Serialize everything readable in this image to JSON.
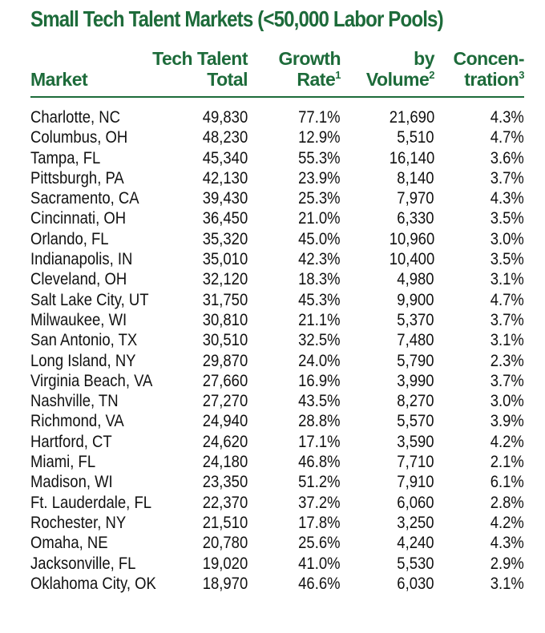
{
  "chart_data": {
    "type": "table",
    "title": "Small Tech Talent Markets (<50,000 Labor Pools)",
    "columns": [
      {
        "key": "market",
        "line1": "",
        "line2": "Market",
        "sup": ""
      },
      {
        "key": "total",
        "line1": "Tech Talent",
        "line2": "Total",
        "sup": ""
      },
      {
        "key": "growth",
        "line1": "Growth",
        "line2": "Rate",
        "sup": "1"
      },
      {
        "key": "volume",
        "line1": "by",
        "line2": "Volume",
        "sup": "2"
      },
      {
        "key": "conc",
        "line1": "Concen-",
        "line2": "tration",
        "sup": "3"
      }
    ],
    "rows": [
      {
        "market": "Charlotte, NC",
        "total": "49,830",
        "growth": "77.1%",
        "volume": "21,690",
        "conc": "4.3%"
      },
      {
        "market": "Columbus, OH",
        "total": "48,230",
        "growth": "12.9%",
        "volume": "5,510",
        "conc": "4.7%"
      },
      {
        "market": "Tampa, FL",
        "total": "45,340",
        "growth": "55.3%",
        "volume": "16,140",
        "conc": "3.6%"
      },
      {
        "market": "Pittsburgh, PA",
        "total": "42,130",
        "growth": "23.9%",
        "volume": "8,140",
        "conc": "3.7%"
      },
      {
        "market": "Sacramento, CA",
        "total": "39,430",
        "growth": "25.3%",
        "volume": "7,970",
        "conc": "4.3%"
      },
      {
        "market": "Cincinnati, OH",
        "total": "36,450",
        "growth": "21.0%",
        "volume": "6,330",
        "conc": "3.5%"
      },
      {
        "market": "Orlando, FL",
        "total": "35,320",
        "growth": "45.0%",
        "volume": "10,960",
        "conc": "3.0%"
      },
      {
        "market": "Indianapolis, IN",
        "total": "35,010",
        "growth": "42.3%",
        "volume": "10,400",
        "conc": "3.5%"
      },
      {
        "market": "Cleveland, OH",
        "total": "32,120",
        "growth": "18.3%",
        "volume": "4,980",
        "conc": "3.1%"
      },
      {
        "market": "Salt Lake City, UT",
        "total": "31,750",
        "growth": "45.3%",
        "volume": "9,900",
        "conc": "4.7%"
      },
      {
        "market": "Milwaukee, WI",
        "total": "30,810",
        "growth": "21.1%",
        "volume": "5,370",
        "conc": "3.7%"
      },
      {
        "market": "San Antonio, TX",
        "total": "30,510",
        "growth": "32.5%",
        "volume": "7,480",
        "conc": "3.1%"
      },
      {
        "market": "Long Island, NY",
        "total": "29,870",
        "growth": "24.0%",
        "volume": "5,790",
        "conc": "2.3%"
      },
      {
        "market": "Virginia Beach, VA",
        "total": "27,660",
        "growth": "16.9%",
        "volume": "3,990",
        "conc": "3.7%"
      },
      {
        "market": "Nashville, TN",
        "total": "27,270",
        "growth": "43.5%",
        "volume": "8,270",
        "conc": "3.0%"
      },
      {
        "market": "Richmond, VA",
        "total": "24,940",
        "growth": "28.8%",
        "volume": "5,570",
        "conc": "3.9%"
      },
      {
        "market": "Hartford, CT",
        "total": "24,620",
        "growth": "17.1%",
        "volume": "3,590",
        "conc": "4.2%"
      },
      {
        "market": "Miami, FL",
        "total": "24,180",
        "growth": "46.8%",
        "volume": "7,710",
        "conc": "2.1%"
      },
      {
        "market": "Madison, WI",
        "total": "23,350",
        "growth": "51.2%",
        "volume": "7,910",
        "conc": "6.1%"
      },
      {
        "market": "Ft. Lauderdale, FL",
        "total": "22,370",
        "growth": "37.2%",
        "volume": "6,060",
        "conc": "2.8%"
      },
      {
        "market": "Rochester, NY",
        "total": "21,510",
        "growth": "17.8%",
        "volume": "3,250",
        "conc": "4.2%"
      },
      {
        "market": "Omaha, NE",
        "total": "20,780",
        "growth": "25.6%",
        "volume": "4,240",
        "conc": "4.3%"
      },
      {
        "market": "Jacksonville, FL",
        "total": "19,020",
        "growth": "41.0%",
        "volume": "5,530",
        "conc": "2.9%"
      },
      {
        "market": "Oklahoma City, OK",
        "total": "18,970",
        "growth": "46.6%",
        "volume": "6,030",
        "conc": "3.1%"
      }
    ]
  },
  "colors": {
    "accent": "#1d6b3a",
    "text": "#111111",
    "background": "#ffffff"
  }
}
